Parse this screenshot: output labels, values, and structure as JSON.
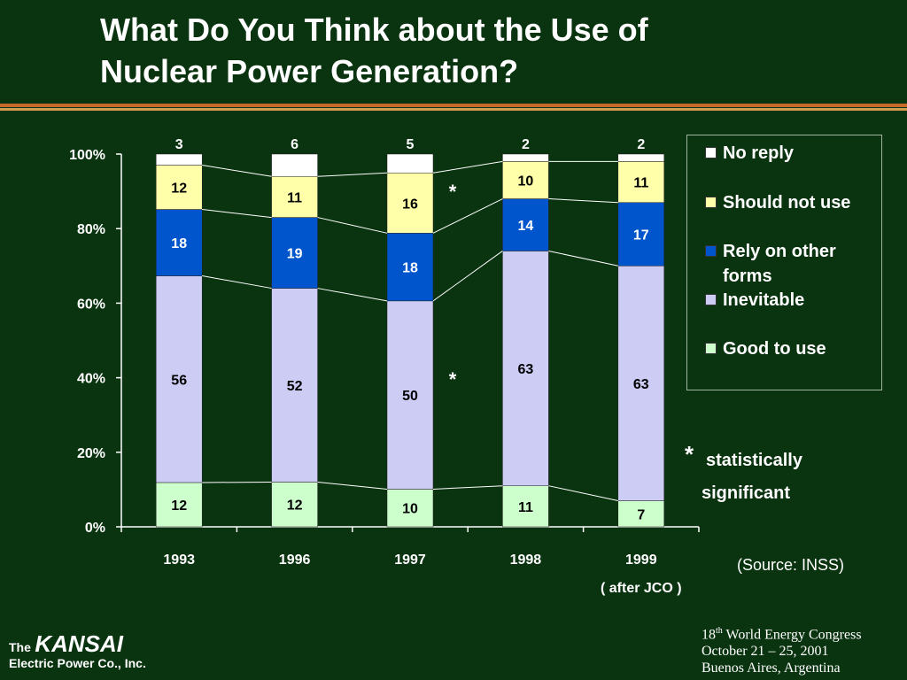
{
  "title_lines": [
    "What Do You Think about the Use of",
    "Nuclear Power Generation?"
  ],
  "colors": {
    "background": "#0a3310",
    "rule_orange": "#c8682a",
    "rule_gold": "#d29d4e",
    "good_to_use": "#ccffcc",
    "inevitable": "#ccccf5",
    "rely_on_other_forms": "#0055cc",
    "should_not_use": "#ffffaa",
    "no_reply": "#ffffff"
  },
  "chart_data": {
    "type": "bar",
    "stacked": true,
    "percent_stacked": true,
    "categories": [
      "1993",
      "1996",
      "1997",
      "1998",
      "1999"
    ],
    "category_sublabels": [
      "",
      "",
      "",
      "",
      "( after JCO )"
    ],
    "series": [
      {
        "name": "Good to use",
        "values": [
          12,
          12,
          10,
          11,
          7
        ]
      },
      {
        "name": "Inevitable",
        "values": [
          56,
          52,
          50,
          63,
          63
        ]
      },
      {
        "name": "Rely on other forms",
        "values": [
          18,
          19,
          18,
          14,
          17
        ]
      },
      {
        "name": "Should not use",
        "values": [
          12,
          11,
          16,
          10,
          11
        ]
      },
      {
        "name": "No reply",
        "values": [
          3,
          6,
          5,
          2,
          2
        ]
      }
    ],
    "y_ticks": [
      "0%",
      "20%",
      "40%",
      "60%",
      "80%",
      "100%"
    ],
    "ylim": [
      0,
      100
    ],
    "legend_position": "right",
    "legend_labels": [
      "No reply",
      "Should not use",
      "Rely on other forms",
      "Inevitable",
      "Good to use"
    ],
    "annotations": [
      "*",
      "*"
    ]
  },
  "notes": {
    "asterisk": "*",
    "statistically": "statistically",
    "significant": "significant",
    "source": "(Source: INSS)"
  },
  "footer_left": {
    "the": "The",
    "name": "KANSAI",
    "sub": "Electric Power Co., Inc."
  },
  "footer_right": {
    "line1_num": "18",
    "line1_sup": "th",
    "line1_rest": " World Energy Congress",
    "line2": "October 21 – 25, 2001",
    "line3": "Buenos Aires, Argentina"
  }
}
